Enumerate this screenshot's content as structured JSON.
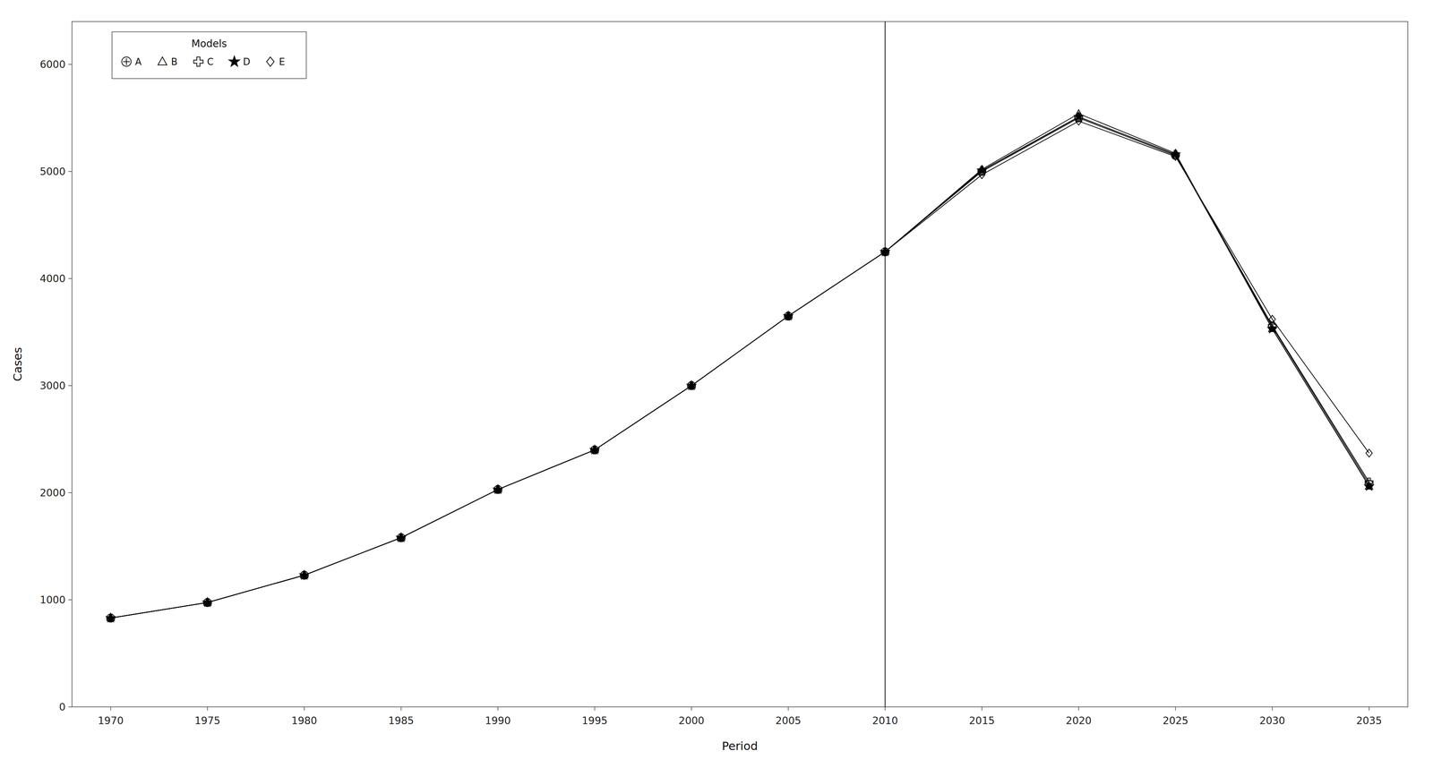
{
  "chart_data": {
    "type": "line",
    "x_label": "Period",
    "y_label": "Cases",
    "xlim": [
      1968,
      2037
    ],
    "ylim": [
      0,
      6400
    ],
    "xticks": [
      1970,
      1975,
      1980,
      1985,
      1990,
      1995,
      2000,
      2005,
      2010,
      2015,
      2020,
      2025,
      2030,
      2035
    ],
    "yticks": [
      0,
      1000,
      2000,
      3000,
      4000,
      5000,
      6000
    ],
    "x": [
      1970,
      1975,
      1980,
      1985,
      1990,
      1995,
      2000,
      2005,
      2010,
      2015,
      2020,
      2025,
      2030,
      2035
    ],
    "vline_x": 2010,
    "grid": false,
    "legend": "upper left",
    "legend_title": "Models",
    "background_color": "#ffffff",
    "series": [
      {
        "name": "A",
        "color": "#000000",
        "marker": "circle_cross",
        "values": [
          830,
          975,
          1230,
          1580,
          2030,
          2400,
          3000,
          3650,
          4250,
          5000,
          5500,
          5150,
          3550,
          2080
        ]
      },
      {
        "name": "B",
        "color": "#000000",
        "marker": "triangle",
        "values": [
          830,
          975,
          1230,
          1580,
          2030,
          2400,
          3000,
          3650,
          4250,
          5020,
          5540,
          5170,
          3530,
          2060
        ]
      },
      {
        "name": "C",
        "color": "#000000",
        "marker": "plus",
        "values": [
          830,
          975,
          1230,
          1580,
          2030,
          2400,
          3000,
          3650,
          4250,
          5010,
          5510,
          5160,
          3560,
          2100
        ]
      },
      {
        "name": "D",
        "color": "#000000",
        "marker": "star",
        "values": [
          830,
          975,
          1230,
          1580,
          2030,
          2400,
          3000,
          3650,
          4250,
          5010,
          5510,
          5160,
          3530,
          2060
        ]
      },
      {
        "name": "E",
        "color": "#000000",
        "marker": "diamond",
        "values": [
          830,
          975,
          1230,
          1580,
          2030,
          2400,
          3000,
          3650,
          4250,
          4970,
          5470,
          5140,
          3620,
          2370
        ]
      }
    ]
  }
}
